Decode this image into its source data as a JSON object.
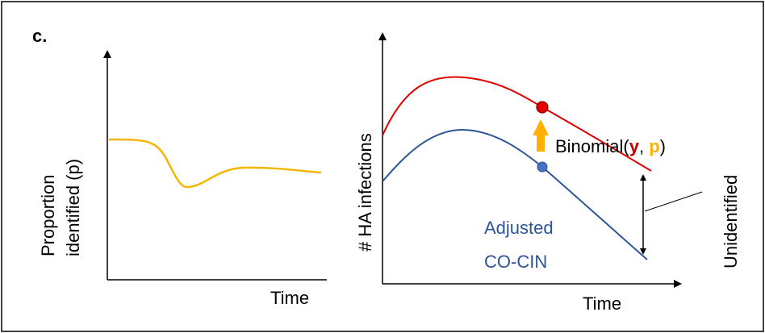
{
  "panel_label": "c.",
  "left_plot": {
    "y_label_line1": "Proportion",
    "y_label_line2": "identified (p)",
    "x_label": "Time",
    "curve_color": "#f2b705"
  },
  "right_plot": {
    "y_label": "# HA infections",
    "x_label": "Time",
    "upper_curve_color": "#e00000",
    "lower_curve_color": "#2e5597",
    "lower_curve_label_line1": "Adjusted",
    "lower_curve_label_line2": "CO-CIN",
    "arrow_color": "#ffb000",
    "binomial": {
      "prefix": "Binomial(",
      "y": "y",
      "sep": ", ",
      "p": "p",
      "suffix": ")",
      "y_color": "#c00000",
      "p_color": "#ffb000"
    },
    "gap_label": "Unidentified"
  }
}
